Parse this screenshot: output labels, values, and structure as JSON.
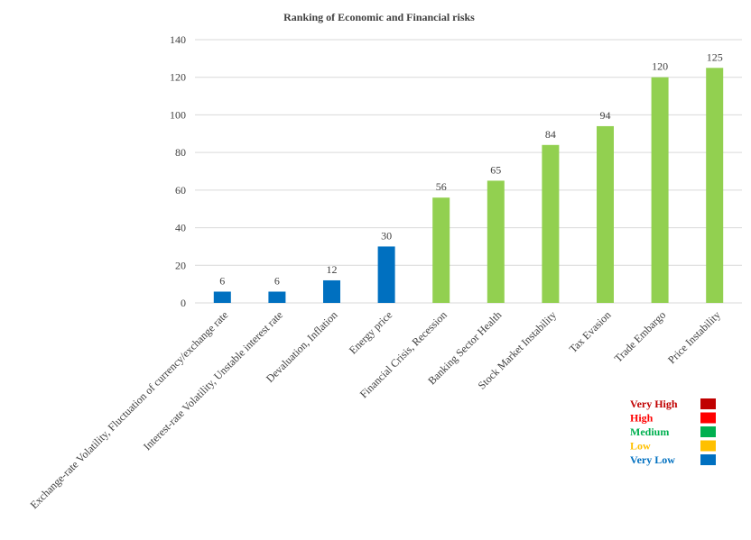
{
  "chart_data": {
    "type": "bar",
    "title": "Ranking of Economic and Financial risks",
    "xlabel": "",
    "ylabel": "",
    "ylim": [
      0,
      140
    ],
    "yticks": [
      0,
      20,
      40,
      60,
      80,
      100,
      120,
      140
    ],
    "grid": true,
    "categories": [
      "Exchange-rate Volatility, Fluctuation of currency/exchange rate",
      "Interest-rate Volatility, Unstable interest rate",
      "Devaluation, Inflation",
      "Energy price",
      "Financial Crisis, Recession",
      "Banking Sector Health",
      "Stock Market Instability",
      "Tax Evasion",
      "Trade Embargo",
      "Price Instability"
    ],
    "values": [
      6,
      6,
      12,
      30,
      56,
      65,
      84,
      94,
      120,
      125
    ],
    "bar_colors": [
      "#0070C0",
      "#0070C0",
      "#0070C0",
      "#0070C0",
      "#92D050",
      "#92D050",
      "#92D050",
      "#92D050",
      "#92D050",
      "#92D050"
    ],
    "legend_position": "bottom-right",
    "legend": [
      {
        "label": "Very High",
        "color": "#C00000"
      },
      {
        "label": "High",
        "color": "#FF0000"
      },
      {
        "label": "Medium",
        "color": "#00B050"
      },
      {
        "label": "Low",
        "color": "#FFC000"
      },
      {
        "label": "Very Low",
        "color": "#0070C0"
      }
    ]
  }
}
